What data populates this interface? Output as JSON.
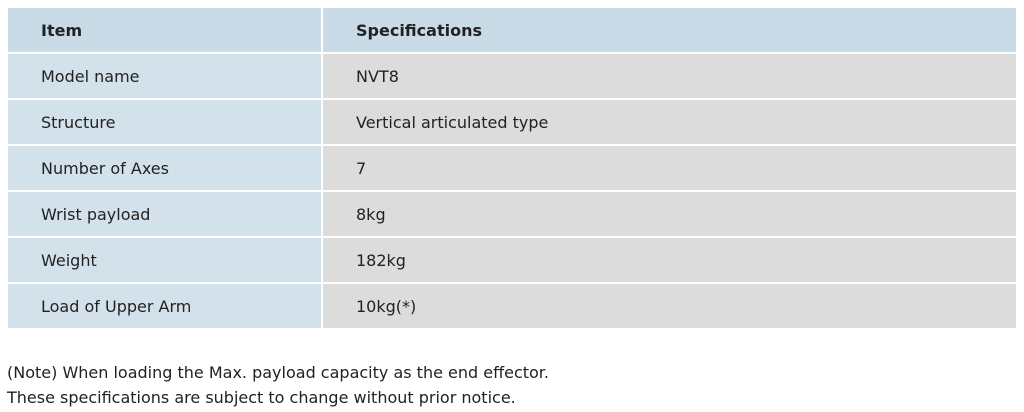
{
  "table": {
    "header": [
      "Item",
      "Specifications"
    ],
    "rows": [
      [
        "Model name",
        "NVT8"
      ],
      [
        "Structure",
        "Vertical articulated type"
      ],
      [
        "Number of Axes",
        "7"
      ],
      [
        "Wrist payload",
        "8kg"
      ],
      [
        "Weight",
        "182kg"
      ],
      [
        "Load of Upper Arm",
        "10kg(*)"
      ]
    ]
  },
  "notes": [
    "(Note) When loading the Max. payload capacity as the end effector.",
    "These specifications are subject to change without prior notice."
  ]
}
